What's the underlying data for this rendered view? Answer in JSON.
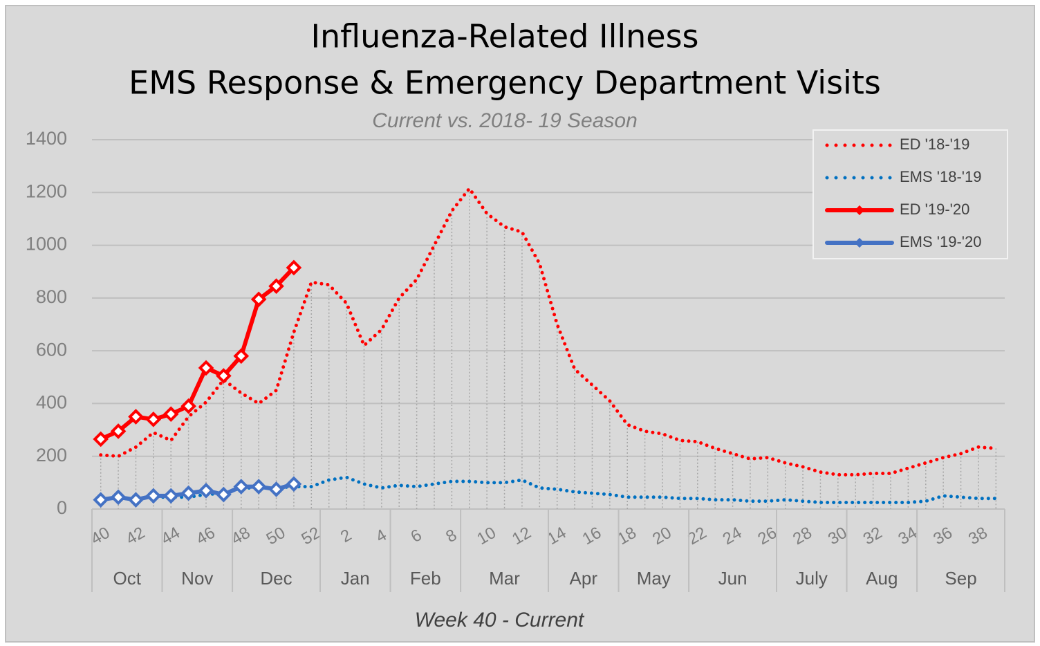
{
  "chart_data": {
    "type": "line",
    "title": [
      "Influenza-Related Illness",
      "EMS Response & Emergency Department Visits"
    ],
    "subtitle": "Current vs. 2018- 19 Season",
    "x_label": "Week 40 - Current",
    "categories": [
      "40",
      null,
      "42",
      null,
      "44",
      null,
      "46",
      null,
      "48",
      null,
      "50",
      null,
      "52",
      null,
      "2",
      null,
      "4",
      null,
      "6",
      null,
      "8",
      null,
      "10",
      null,
      "12",
      null,
      "14",
      null,
      "16",
      null,
      "18",
      null,
      "20",
      null,
      "22",
      null,
      "24",
      null,
      "26",
      null,
      "28",
      null,
      "30",
      null,
      "32",
      null,
      "34",
      null,
      "36",
      null,
      "38",
      null
    ],
    "months": [
      {
        "label": "Oct",
        "weeks": 4
      },
      {
        "label": "Nov",
        "weeks": 4
      },
      {
        "label": "Dec",
        "weeks": 5
      },
      {
        "label": "Jan",
        "weeks": 4
      },
      {
        "label": "Feb",
        "weeks": 4
      },
      {
        "label": "Mar",
        "weeks": 5
      },
      {
        "label": "Apr",
        "weeks": 4
      },
      {
        "label": "May",
        "weeks": 4
      },
      {
        "label": "Jun",
        "weeks": 5
      },
      {
        "label": "July",
        "weeks": 4
      },
      {
        "label": "Aug",
        "weeks": 4
      },
      {
        "label": "Sep",
        "weeks": 5
      }
    ],
    "ylim": [
      0,
      1400
    ],
    "yticks": [
      0,
      200,
      400,
      600,
      800,
      1000,
      1200,
      1400
    ],
    "grid": true,
    "legend": "upper right",
    "series": [
      {
        "name": "ED '18-'19",
        "color": "#ff0000",
        "style": "dotted",
        "drop_lines": true,
        "values": [
          205,
          200,
          235,
          290,
          260,
          350,
          405,
          490,
          440,
          400,
          450,
          670,
          860,
          850,
          780,
          620,
          680,
          800,
          870,
          1000,
          1130,
          1215,
          1120,
          1070,
          1050,
          930,
          700,
          530,
          470,
          410,
          320,
          295,
          285,
          260,
          255,
          230,
          210,
          190,
          195,
          175,
          160,
          140,
          130,
          130,
          135,
          135,
          155,
          175,
          195,
          210,
          235,
          230
        ]
      },
      {
        "name": "EMS '18-'19",
        "color": "#0070c0",
        "style": "dotted",
        "values": [
          40,
          40,
          40,
          45,
          45,
          45,
          55,
          60,
          80,
          80,
          80,
          85,
          85,
          110,
          120,
          95,
          80,
          90,
          85,
          95,
          105,
          105,
          100,
          100,
          110,
          80,
          75,
          65,
          60,
          55,
          45,
          45,
          45,
          40,
          40,
          35,
          35,
          30,
          30,
          35,
          30,
          25,
          25,
          25,
          25,
          25,
          25,
          30,
          50,
          45,
          40,
          40
        ]
      },
      {
        "name": "ED '19-'20",
        "color": "#ff0000",
        "style": "solid",
        "values": [
          265,
          295,
          350,
          340,
          360,
          390,
          535,
          505,
          580,
          795,
          845,
          915,
          null,
          null,
          null,
          null,
          null,
          null,
          null,
          null,
          null,
          null,
          null,
          null,
          null,
          null,
          null,
          null,
          null,
          null,
          null,
          null,
          null,
          null,
          null,
          null,
          null,
          null,
          null,
          null,
          null,
          null,
          null,
          null,
          null,
          null,
          null,
          null,
          null,
          null,
          null,
          null
        ]
      },
      {
        "name": "EMS '19-'20",
        "color": "#4472c4",
        "style": "solid",
        "values": [
          35,
          45,
          35,
          50,
          50,
          60,
          70,
          55,
          85,
          85,
          75,
          95,
          null,
          null,
          null,
          null,
          null,
          null,
          null,
          null,
          null,
          null,
          null,
          null,
          null,
          null,
          null,
          null,
          null,
          null,
          null,
          null,
          null,
          null,
          null,
          null,
          null,
          null,
          null,
          null,
          null,
          null,
          null,
          null,
          null,
          null,
          null,
          null,
          null,
          null,
          null,
          null
        ]
      }
    ]
  }
}
